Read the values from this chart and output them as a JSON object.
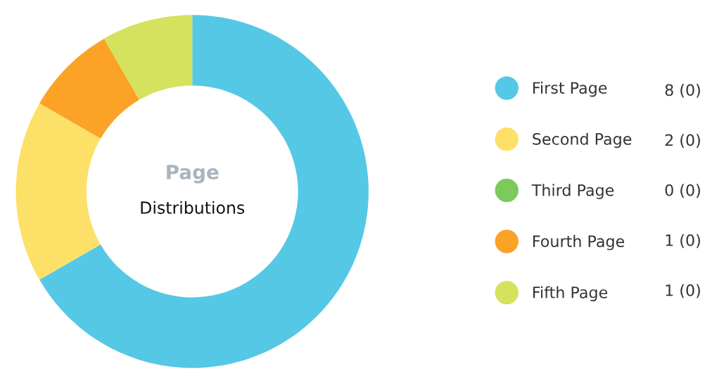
{
  "chart_data": {
    "type": "donut",
    "title": "Page",
    "subtitle": "Distributions",
    "categories": [
      "First Page",
      "Second Page",
      "Third Page",
      "Fourth Page",
      "Fifth Page"
    ],
    "values": [
      8,
      2,
      0,
      1,
      1
    ],
    "colors": [
      "#55c8e5",
      "#fde068",
      "#7cca5c",
      "#fba227",
      "#d4e25e"
    ],
    "value_labels": [
      "8 (0)",
      "2 (0)",
      "0 (0)",
      "1 (0)",
      "1 (0)"
    ],
    "legend": "right"
  }
}
